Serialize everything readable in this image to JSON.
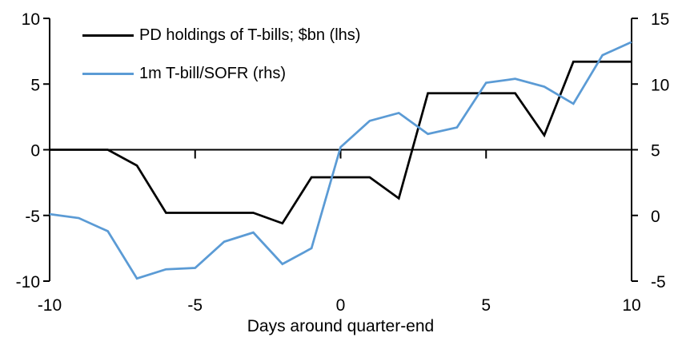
{
  "colors": {
    "background": "#ffffff",
    "axis": "#000000",
    "text": "#000000"
  },
  "chart_data": {
    "type": "line",
    "title": "",
    "xlabel": "Days around quarter-end",
    "grid": false,
    "legend_position": "top-left-inside",
    "x": [
      -10,
      -9,
      -8,
      -7,
      -6,
      -5,
      -4,
      -3,
      -2,
      -1,
      0,
      1,
      2,
      3,
      4,
      5,
      6,
      7,
      8,
      9,
      10
    ],
    "x_axis": {
      "min": -10,
      "max": 10,
      "ticks": [
        -10,
        -5,
        0,
        5,
        10
      ]
    },
    "left_axis": {
      "min": -10,
      "max": 10,
      "ticks": [
        10,
        5,
        0,
        -5,
        -10
      ]
    },
    "right_axis": {
      "min": -5,
      "max": 15,
      "ticks": [
        15,
        10,
        5,
        0,
        -5
      ]
    },
    "series": [
      {
        "name": "PD holdings of T-bills; $bn (lhs)",
        "axis": "left",
        "color": "#000000",
        "values": [
          0,
          0,
          0,
          -1.2,
          -4.8,
          -4.8,
          -4.8,
          -4.8,
          -5.6,
          -2.1,
          -2.1,
          -2.1,
          -3.7,
          4.3,
          4.3,
          4.3,
          4.3,
          1.1,
          6.7,
          6.7,
          6.7
        ]
      },
      {
        "name": "1m T-bill/SOFR (rhs)",
        "axis": "right",
        "color": "#5B9BD5",
        "values": [
          0.1,
          -0.2,
          -1.2,
          -4.8,
          -4.1,
          -4.0,
          -2.0,
          -1.3,
          -3.7,
          -2.5,
          5.2,
          7.2,
          7.8,
          6.2,
          6.7,
          10.1,
          10.4,
          9.8,
          8.5,
          12.2,
          13.2
        ]
      }
    ]
  }
}
